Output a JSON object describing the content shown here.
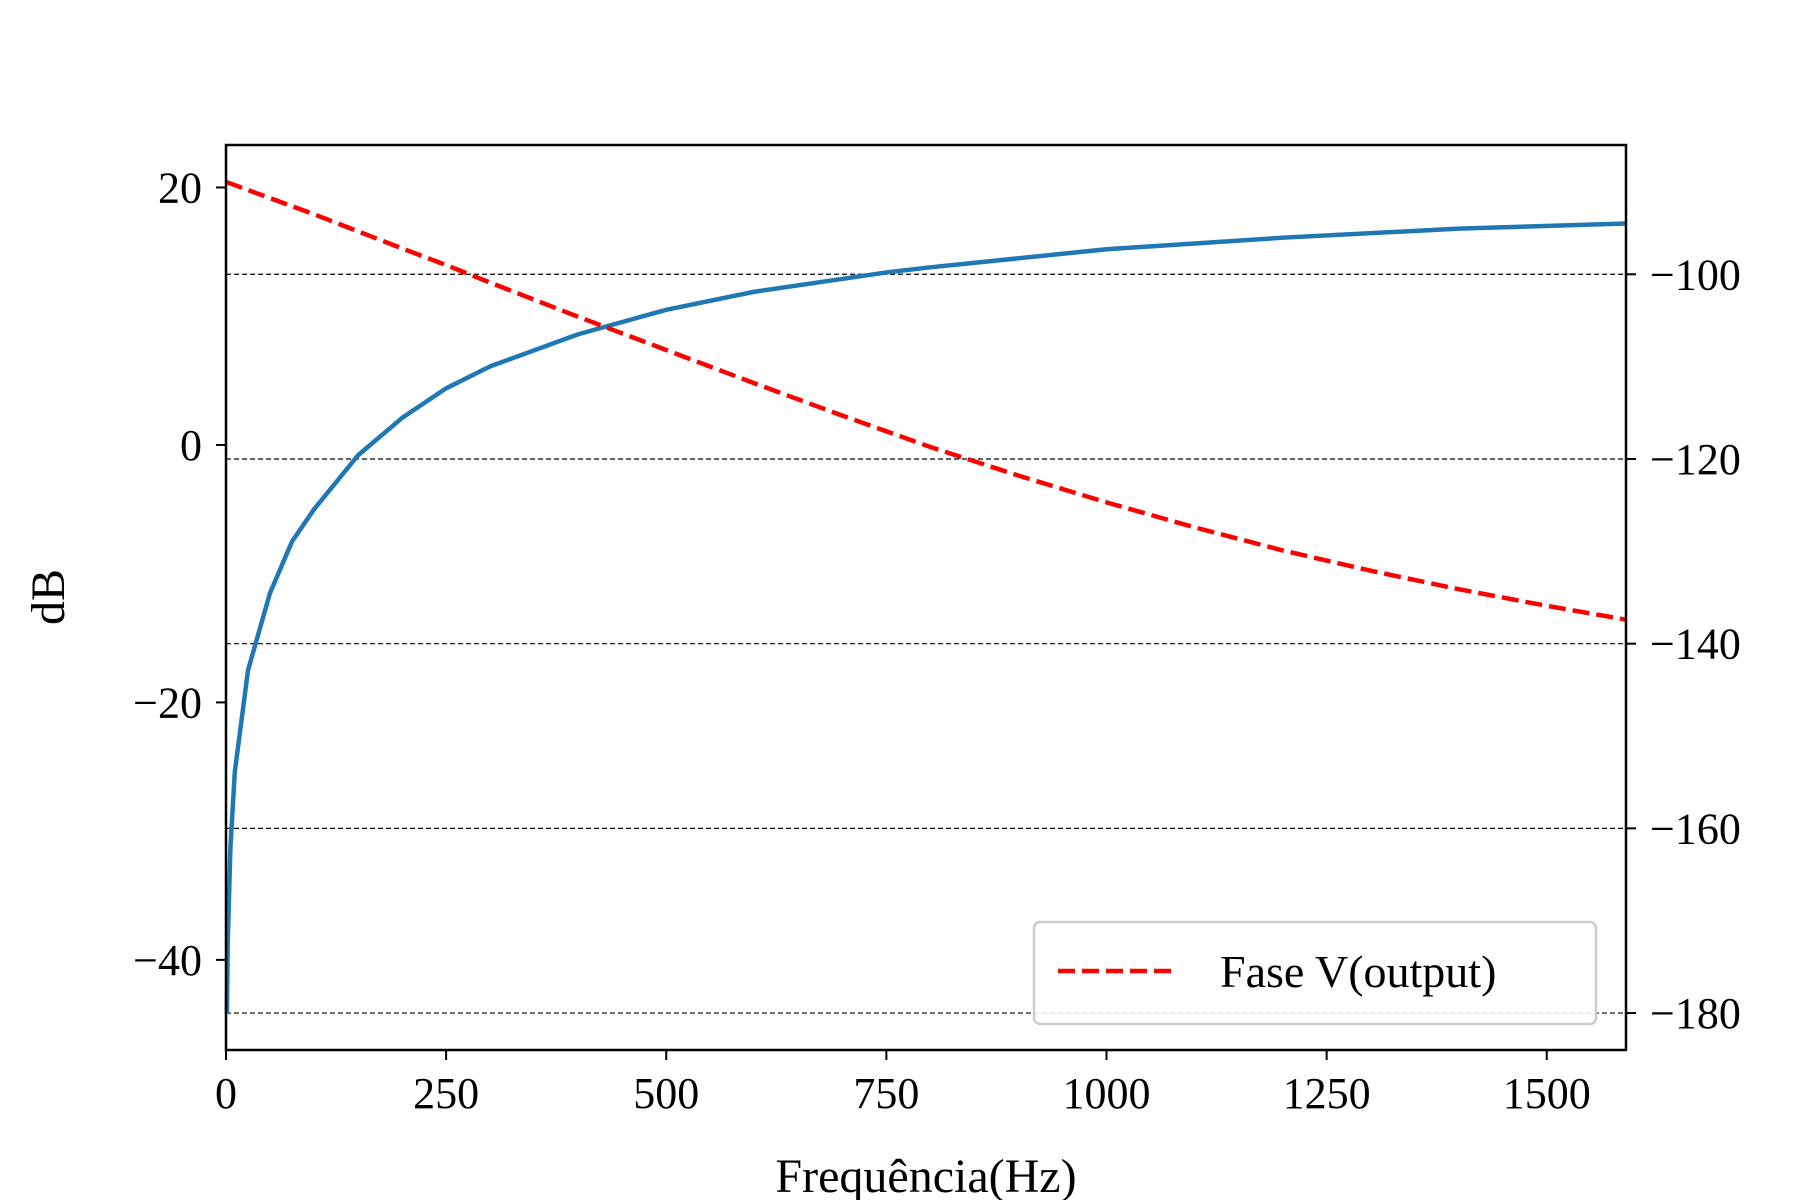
{
  "chart_data": {
    "type": "line",
    "xlabel": "Frequência(Hz)",
    "ylabel": "dB",
    "x_ticks": [
      0,
      250,
      500,
      750,
      1000,
      1250,
      1500
    ],
    "y_left_ticks": [
      20,
      0,
      -20,
      -40
    ],
    "y_right_ticks": [
      -100,
      -120,
      -140,
      -160,
      -180
    ],
    "xlim": [
      0,
      1590
    ],
    "ylim_left": [
      -47,
      23.3
    ],
    "ylim_right": [
      -184,
      -86
    ],
    "grid": "horizontal dashed, right axis",
    "legend": {
      "placement": "lower-right",
      "entries": [
        "Fase V(output)"
      ]
    },
    "series": [
      {
        "axis": "left",
        "color": "#1f77b4",
        "style": "solid",
        "x": [
          1,
          2,
          5,
          10,
          25,
          50,
          75,
          100,
          150,
          200,
          250,
          300,
          400,
          500,
          600,
          750,
          800,
          1000,
          1200,
          1400,
          1590
        ],
        "y": [
          -44.2,
          -38.6,
          -31.3,
          -25.4,
          -17.5,
          -11.5,
          -7.5,
          -5.0,
          -0.8,
          2.1,
          4.4,
          6.1,
          8.6,
          10.5,
          11.9,
          13.4,
          13.8,
          15.2,
          16.1,
          16.8,
          17.2
        ]
      },
      {
        "name": "Fase V(output)",
        "axis": "right",
        "color": "#ff0000",
        "style": "dashed",
        "x": [
          0,
          100,
          200,
          250,
          300,
          400,
          500,
          600,
          700,
          800,
          900,
          1000,
          1100,
          1200,
          1300,
          1400,
          1500,
          1590
        ],
        "y": [
          -90.0,
          -93.5,
          -97.2,
          -99.0,
          -100.9,
          -104.6,
          -108.2,
          -111.8,
          -115.3,
          -118.7,
          -121.8,
          -124.7,
          -127.4,
          -129.9,
          -132.1,
          -134.1,
          -135.9,
          -137.4
        ]
      }
    ]
  }
}
